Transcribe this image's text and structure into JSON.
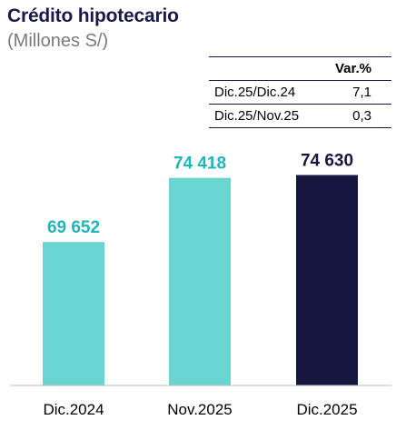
{
  "header": {
    "title": "Crédito hipotecario",
    "subtitle": "(Millones S/)"
  },
  "variation_table": {
    "header": "Var.%",
    "rows": [
      {
        "label": "Dic.25/Dic.24",
        "value": "7,1"
      },
      {
        "label": "Dic.25/Nov.25",
        "value": "0,3"
      }
    ]
  },
  "chart_data": {
    "type": "bar",
    "title": "Crédito hipotecario",
    "subtitle": "(Millones S/)",
    "categories": [
      "Dic.2024",
      "Nov.2025",
      "Dic.2025"
    ],
    "values": [
      69652,
      74418,
      74630
    ],
    "value_labels": [
      "69 652",
      "74 418",
      "74 630"
    ],
    "bar_colors": [
      "#6ad4d0",
      "#6ad4d0",
      "#16163f"
    ],
    "label_colors": [
      "#1fb6b8",
      "#1fb6b8",
      "#16163f"
    ],
    "ylim": [
      59000,
      77500
    ],
    "grid": false,
    "legend": "none"
  }
}
